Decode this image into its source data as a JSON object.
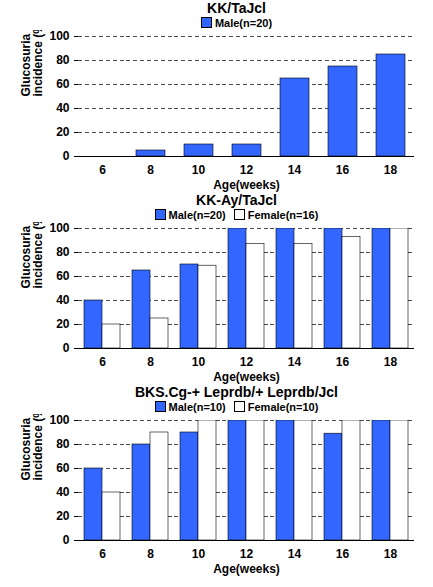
{
  "chart_data": [
    {
      "type": "bar",
      "title": "KK/TaJcl",
      "xlabel": "Age(weeks)",
      "ylabel": "Glucosuria incidence (%)",
      "categories": [
        6,
        8,
        10,
        12,
        14,
        16,
        18
      ],
      "series": [
        {
          "name": "Male(n=20)",
          "color": "#3366ff",
          "values": [
            0,
            5,
            10,
            10,
            65,
            75,
            85
          ]
        }
      ],
      "ylim": [
        0,
        100
      ],
      "yticks": [
        0,
        20,
        40,
        60,
        80,
        100
      ],
      "grid": true,
      "legend": "top"
    },
    {
      "type": "bar",
      "title": "KK-Ay/TaJcl",
      "xlabel": "Age(weeks)",
      "ylabel": "Glucosuria incidence (%)",
      "categories": [
        6,
        8,
        10,
        12,
        14,
        16,
        18
      ],
      "series": [
        {
          "name": "Male(n=20)",
          "color": "#3366ff",
          "values": [
            40,
            65,
            70,
            100,
            100,
            100,
            100
          ]
        },
        {
          "name": "Female(n=16)",
          "color": "#ffffff",
          "values": [
            20,
            25,
            69,
            87,
            87,
            93,
            100
          ]
        }
      ],
      "ylim": [
        0,
        100
      ],
      "yticks": [
        0,
        20,
        40,
        60,
        80,
        100
      ],
      "grid": true,
      "legend": "top"
    },
    {
      "type": "bar",
      "title": "BKS.Cg-+ Leprdb/+ Leprdb/Jcl",
      "xlabel": "Age(weeks)",
      "ylabel": "Glucosuria incidence (%)",
      "categories": [
        6,
        8,
        10,
        12,
        14,
        16,
        18
      ],
      "series": [
        {
          "name": "Male(n=10)",
          "color": "#3366ff",
          "values": [
            60,
            80,
            90,
            100,
            100,
            89,
            100
          ]
        },
        {
          "name": "Female(n=10)",
          "color": "#ffffff",
          "values": [
            40,
            90,
            100,
            100,
            100,
            100,
            100
          ]
        }
      ],
      "ylim": [
        0,
        100
      ],
      "yticks": [
        0,
        20,
        40,
        60,
        80,
        100
      ],
      "grid": true,
      "legend": "top"
    }
  ]
}
